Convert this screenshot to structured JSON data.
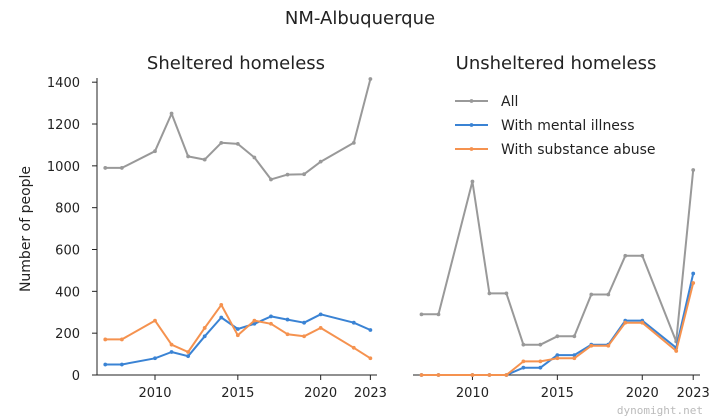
{
  "figure": {
    "title": "NM-Albuquerque",
    "watermark": "dynomight.net"
  },
  "colors": {
    "all": "#999999",
    "mental": "#3a83d4",
    "substance": "#f5924f",
    "axis": "#222222"
  },
  "chart_data": [
    {
      "type": "line",
      "title": "Sheltered homeless",
      "ylabel": "Number of people",
      "xlim": [
        2006.5,
        2023.4
      ],
      "ylim": [
        0,
        1420
      ],
      "xticks": [
        2010,
        2015,
        2020,
        2023
      ],
      "yticks": [
        0,
        200,
        400,
        600,
        800,
        1000,
        1200,
        1400
      ],
      "x": [
        2007,
        2008,
        2010,
        2011,
        2012,
        2013,
        2014,
        2015,
        2016,
        2017,
        2018,
        2019,
        2020,
        2022,
        2023
      ],
      "series": [
        {
          "name": "All",
          "key": "all",
          "values": [
            990,
            990,
            1070,
            1250,
            1045,
            1030,
            1110,
            1105,
            1040,
            935,
            958,
            960,
            1020,
            1110,
            1415
          ]
        },
        {
          "name": "With mental illness",
          "key": "mental",
          "values": [
            50,
            50,
            80,
            110,
            90,
            185,
            275,
            220,
            245,
            280,
            265,
            250,
            290,
            250,
            215
          ]
        },
        {
          "name": "With substance abuse",
          "key": "substance",
          "values": [
            170,
            170,
            260,
            145,
            110,
            225,
            335,
            190,
            260,
            245,
            195,
            185,
            225,
            130,
            80
          ]
        }
      ]
    },
    {
      "type": "line",
      "title": "Unsheltered homeless",
      "xlim": [
        2006.5,
        2023.4
      ],
      "ylim": [
        0,
        1420
      ],
      "xticks": [
        2010,
        2015,
        2020,
        2023
      ],
      "legend": "top-right",
      "x": [
        2007,
        2008,
        2010,
        2011,
        2012,
        2013,
        2014,
        2015,
        2016,
        2017,
        2018,
        2019,
        2020,
        2022,
        2023
      ],
      "series": [
        {
          "name": "All",
          "key": "all",
          "values": [
            290,
            290,
            925,
            390,
            390,
            145,
            145,
            185,
            185,
            385,
            385,
            570,
            570,
            160,
            980
          ]
        },
        {
          "name": "With mental illness",
          "key": "mental",
          "values": [
            0,
            0,
            0,
            0,
            0,
            35,
            35,
            95,
            95,
            145,
            145,
            260,
            260,
            130,
            485
          ]
        },
        {
          "name": "With substance abuse",
          "key": "substance",
          "values": [
            0,
            0,
            0,
            0,
            0,
            65,
            65,
            80,
            80,
            140,
            140,
            250,
            250,
            115,
            440
          ]
        }
      ]
    }
  ]
}
